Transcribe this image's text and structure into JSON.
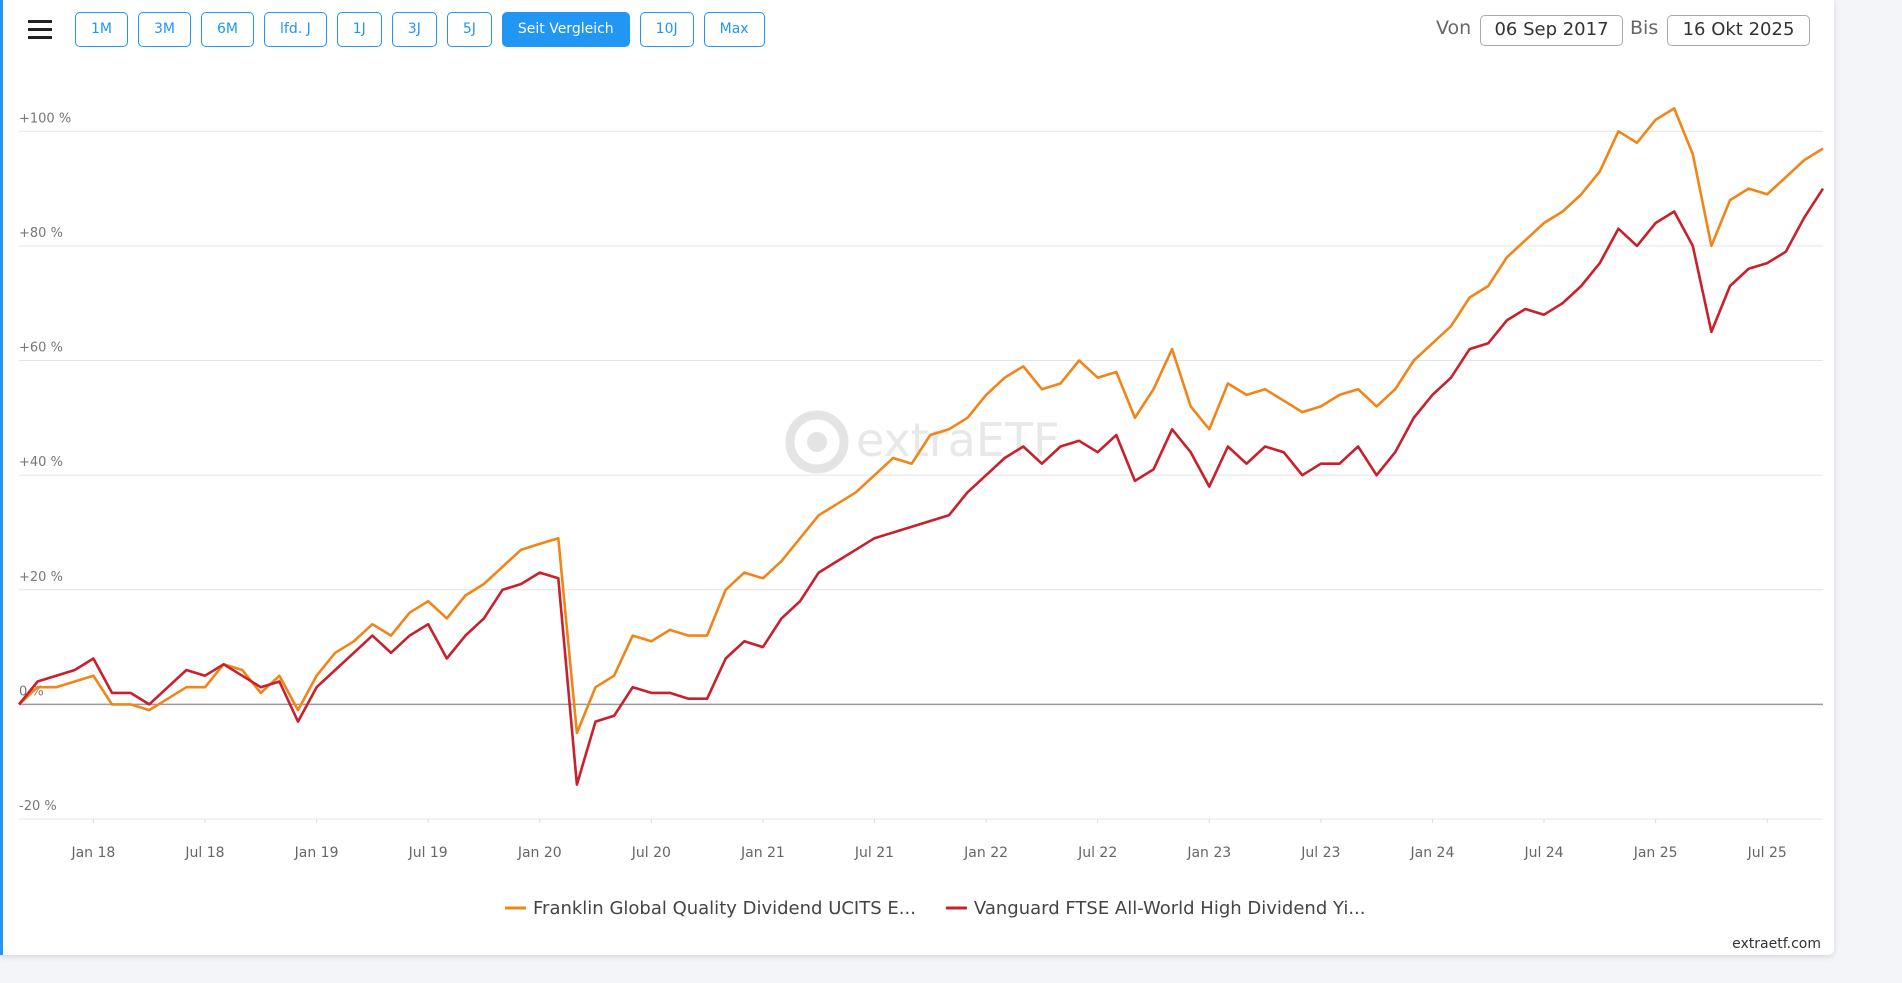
{
  "toolbar": {
    "buttons": [
      "1M",
      "3M",
      "6M",
      "lfd. J",
      "1J",
      "3J",
      "5J",
      "Seit Vergleich",
      "10J",
      "Max"
    ],
    "active_button": 7,
    "from_label": "Von",
    "from_date": "06 Sep 2017",
    "to_label": "Bis",
    "to_date": "16 Okt 2025"
  },
  "chart_data": {
    "type": "line",
    "x": [
      "2017-09",
      "2017-10",
      "2017-11",
      "2017-12",
      "2018-01",
      "2018-02",
      "2018-03",
      "2018-04",
      "2018-05",
      "2018-06",
      "2018-07",
      "2018-08",
      "2018-09",
      "2018-10",
      "2018-11",
      "2018-12",
      "2019-01",
      "2019-02",
      "2019-03",
      "2019-04",
      "2019-05",
      "2019-06",
      "2019-07",
      "2019-08",
      "2019-09",
      "2019-10",
      "2019-11",
      "2019-12",
      "2020-01",
      "2020-02",
      "2020-03",
      "2020-04",
      "2020-05",
      "2020-06",
      "2020-07",
      "2020-08",
      "2020-09",
      "2020-10",
      "2020-11",
      "2020-12",
      "2021-01",
      "2021-02",
      "2021-03",
      "2021-04",
      "2021-05",
      "2021-06",
      "2021-07",
      "2021-08",
      "2021-09",
      "2021-10",
      "2021-11",
      "2021-12",
      "2022-01",
      "2022-02",
      "2022-03",
      "2022-04",
      "2022-05",
      "2022-06",
      "2022-07",
      "2022-08",
      "2022-09",
      "2022-10",
      "2022-11",
      "2022-12",
      "2023-01",
      "2023-02",
      "2023-03",
      "2023-04",
      "2023-05",
      "2023-06",
      "2023-07",
      "2023-08",
      "2023-09",
      "2023-10",
      "2023-11",
      "2023-12",
      "2024-01",
      "2024-02",
      "2024-03",
      "2024-04",
      "2024-05",
      "2024-06",
      "2024-07",
      "2024-08",
      "2024-09",
      "2024-10",
      "2024-11",
      "2024-12",
      "2025-01",
      "2025-02",
      "2025-03",
      "2025-04",
      "2025-05",
      "2025-06",
      "2025-07",
      "2025-08",
      "2025-09",
      "2025-10"
    ],
    "series": [
      {
        "name": "Franklin Global Quality Dividend UCITS E...",
        "color": "#f0851a",
        "values": [
          0,
          3,
          3,
          4,
          5,
          0,
          0,
          -1,
          1,
          3,
          3,
          7,
          6,
          2,
          5,
          -1,
          5,
          9,
          11,
          14,
          12,
          16,
          18,
          15,
          19,
          21,
          24,
          27,
          28,
          29,
          -5,
          3,
          5,
          12,
          11,
          13,
          12,
          12,
          20,
          23,
          22,
          25,
          29,
          33,
          35,
          37,
          40,
          43,
          42,
          47,
          48,
          50,
          54,
          57,
          59,
          55,
          56,
          60,
          57,
          58,
          50,
          55,
          62,
          52,
          48,
          56,
          54,
          55,
          53,
          51,
          52,
          54,
          55,
          52,
          55,
          60,
          63,
          66,
          71,
          73,
          78,
          81,
          84,
          86,
          89,
          93,
          100,
          98,
          102,
          104,
          96,
          80,
          88,
          90,
          89,
          92,
          95,
          97
        ]
      },
      {
        "name": "Vanguard FTSE All-World High Dividend Yi...",
        "color": "#c8202c",
        "values": [
          0,
          4,
          5,
          6,
          8,
          2,
          2,
          0,
          3,
          6,
          5,
          7,
          5,
          3,
          4,
          -3,
          3,
          6,
          9,
          12,
          9,
          12,
          14,
          8,
          12,
          15,
          20,
          21,
          23,
          22,
          -14,
          -3,
          -2,
          3,
          2,
          2,
          1,
          1,
          8,
          11,
          10,
          15,
          18,
          23,
          25,
          27,
          29,
          30,
          31,
          32,
          33,
          37,
          40,
          43,
          45,
          42,
          45,
          46,
          44,
          47,
          39,
          41,
          48,
          44,
          38,
          45,
          42,
          45,
          44,
          40,
          42,
          42,
          45,
          40,
          44,
          50,
          54,
          57,
          62,
          63,
          67,
          69,
          68,
          70,
          73,
          77,
          83,
          80,
          84,
          86,
          80,
          65,
          73,
          76,
          77,
          79,
          85,
          90
        ]
      }
    ],
    "xlim": [
      "2017-09",
      "2025-10"
    ],
    "xticks": [
      {
        "value": "2018-01",
        "label": "Jan 18"
      },
      {
        "value": "2018-07",
        "label": "Jul 18"
      },
      {
        "value": "2019-01",
        "label": "Jan 19"
      },
      {
        "value": "2019-07",
        "label": "Jul 19"
      },
      {
        "value": "2020-01",
        "label": "Jan 20"
      },
      {
        "value": "2020-07",
        "label": "Jul 20"
      },
      {
        "value": "2021-01",
        "label": "Jan 21"
      },
      {
        "value": "2021-07",
        "label": "Jul 21"
      },
      {
        "value": "2022-01",
        "label": "Jan 22"
      },
      {
        "value": "2022-07",
        "label": "Jul 22"
      },
      {
        "value": "2023-01",
        "label": "Jan 23"
      },
      {
        "value": "2023-07",
        "label": "Jul 23"
      },
      {
        "value": "2024-01",
        "label": "Jan 24"
      },
      {
        "value": "2024-07",
        "label": "Jul 24"
      },
      {
        "value": "2025-01",
        "label": "Jan 25"
      },
      {
        "value": "2025-07",
        "label": "Jul 25"
      }
    ],
    "ylim": [
      -20,
      110
    ],
    "yticks": [
      {
        "value": 100,
        "label": "+100 %"
      },
      {
        "value": 80,
        "label": "+80 %"
      },
      {
        "value": 60,
        "label": "+60 %"
      },
      {
        "value": 40,
        "label": "+40 %"
      },
      {
        "value": 20,
        "label": "+20 %"
      },
      {
        "value": 0,
        "label": "0 %"
      },
      {
        "value": -20,
        "label": "-20 %"
      }
    ],
    "grid": true,
    "legend": "bottom",
    "watermark": "extraETF"
  },
  "footer": {
    "credit": "extraetf.com"
  }
}
